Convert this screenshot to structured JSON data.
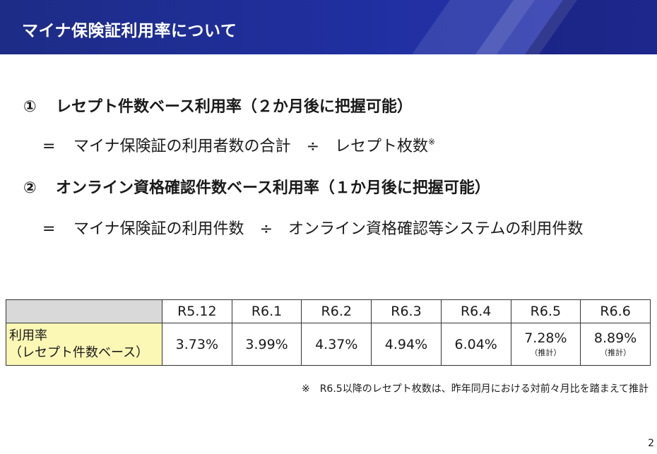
{
  "header": {
    "title": "マイナ保険証利用率について"
  },
  "items": [
    {
      "number": "①",
      "heading": "レセプト件数ベース利用率（２か月後に把握可能）",
      "formula": {
        "equals": "=",
        "numerator": "マイナ保険証の利用者数の合計",
        "operator": "÷",
        "denominator": "レセプト枚数",
        "mark": "※"
      }
    },
    {
      "number": "②",
      "heading": "オンライン資格確認件数ベース利用率（１か月後に把握可能）",
      "formula": {
        "equals": "=",
        "numerator": "マイナ保険証の利用件数",
        "operator": "÷",
        "denominator": "オンライン資格確認等システムの利用件数"
      }
    }
  ],
  "table": {
    "columns": [
      "R5.12",
      "R6.1",
      "R6.2",
      "R6.3",
      "R6.4",
      "R6.5",
      "R6.6"
    ],
    "row_label_line1": "利用率",
    "row_label_line2": "（レセプト件数ベース）",
    "values": [
      "3.73%",
      "3.99%",
      "4.37%",
      "4.94%",
      "6.04%",
      "7.28%",
      "8.89%"
    ],
    "subnotes": [
      "",
      "",
      "",
      "",
      "",
      "（推計）",
      "（推計）"
    ]
  },
  "footnote": "※　R6.5以降のレセプト枚数は、昨年同月における対前々月比を踏まえて推計",
  "page_number": "2"
}
